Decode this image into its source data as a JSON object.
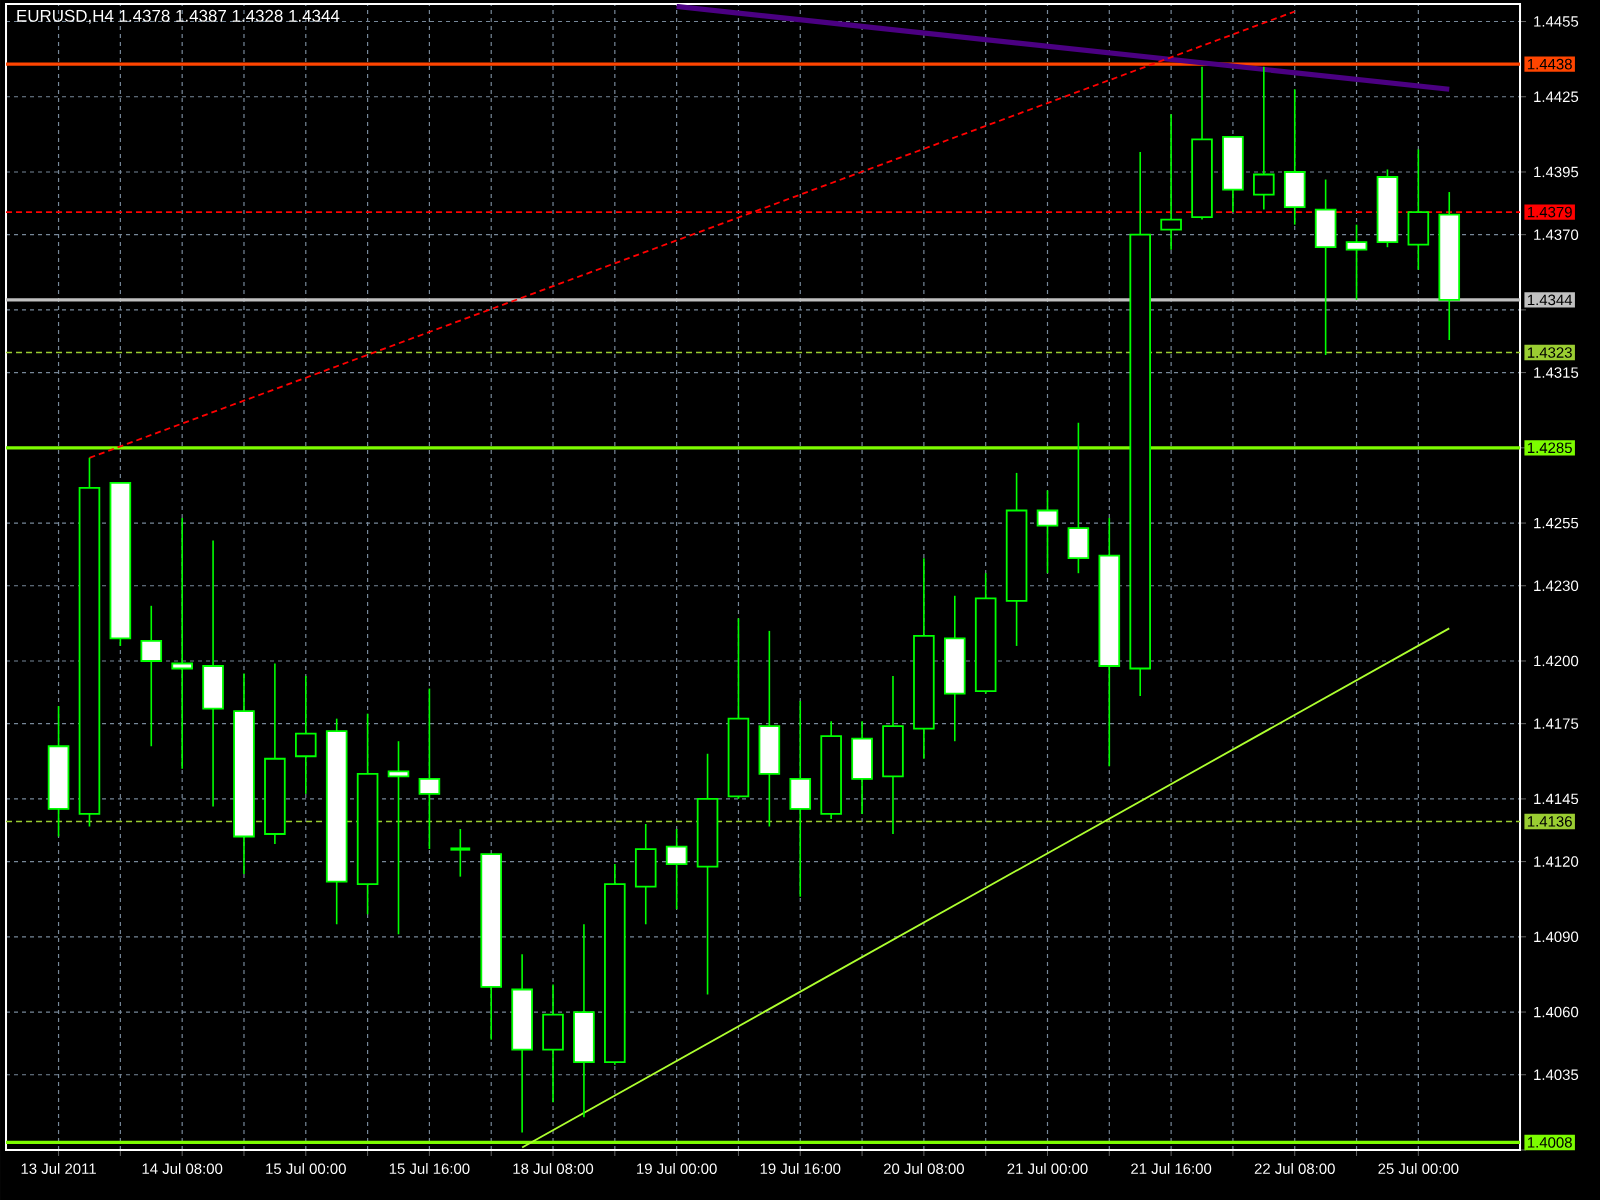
{
  "chart_data": {
    "type": "candlestick",
    "title": "EURUSD,H4  1.4378 1.4387 1.4328 1.4344",
    "color": "#00ff00",
    "categories": [
      "13 Jul 2011",
      null,
      null,
      null,
      "14 Jul 08:00",
      null,
      null,
      null,
      "15 Jul 00:00",
      null,
      null,
      null,
      "15 Jul 16:00",
      null,
      null,
      null,
      "18 Jul 08:00",
      null,
      null,
      null,
      "19 Jul 00:00",
      null,
      null,
      null,
      "19 Jul 16:00",
      null,
      null,
      null,
      "20 Jul 08:00",
      null,
      null,
      null,
      "21 Jul 00:00",
      null,
      null,
      null,
      "21 Jul 16:00",
      null,
      null,
      null,
      "22 Jul 08:00",
      null,
      null,
      null,
      "25 Jul 00:00",
      null
    ],
    "ohlc": [
      [
        1.4166,
        1.4182,
        1.413,
        1.4141
      ],
      [
        1.4139,
        1.4281,
        1.4134,
        1.4269
      ],
      [
        1.4271,
        1.4271,
        1.4206,
        1.4209
      ],
      [
        1.4208,
        1.4222,
        1.4166,
        1.42
      ],
      [
        1.4199,
        1.4257,
        1.4157,
        1.4197
      ],
      [
        1.4198,
        1.4248,
        1.4142,
        1.4181
      ],
      [
        1.418,
        1.4195,
        1.4115,
        1.413
      ],
      [
        1.4131,
        1.4199,
        1.4127,
        1.4161
      ],
      [
        1.4162,
        1.4194,
        1.4147,
        1.4171
      ],
      [
        1.4172,
        1.4177,
        1.4095,
        1.4112
      ],
      [
        1.4111,
        1.4179,
        1.4099,
        1.4155
      ],
      [
        1.4156,
        1.4168,
        1.4091,
        1.4154
      ],
      [
        1.4153,
        1.4189,
        1.4125,
        1.4147
      ],
      [
        1.4125,
        1.4133,
        1.4114,
        1.4125
      ],
      [
        1.4123,
        1.4123,
        1.4049,
        1.407
      ],
      [
        1.4069,
        1.4083,
        1.4012,
        1.4045
      ],
      [
        1.4045,
        1.4071,
        1.4024,
        1.4059
      ],
      [
        1.406,
        1.4095,
        1.4018,
        1.404
      ],
      [
        1.404,
        1.4119,
        1.4039,
        1.4111
      ],
      [
        1.411,
        1.4135,
        1.4095,
        1.4125
      ],
      [
        1.4126,
        1.4133,
        1.4101,
        1.4119
      ],
      [
        1.4118,
        1.4163,
        1.4067,
        1.4145
      ],
      [
        1.4146,
        1.4217,
        1.4145,
        1.4177
      ],
      [
        1.4174,
        1.4212,
        1.4134,
        1.4155
      ],
      [
        1.4153,
        1.4184,
        1.4106,
        1.4141
      ],
      [
        1.4139,
        1.4176,
        1.4137,
        1.417
      ],
      [
        1.4169,
        1.4176,
        1.4139,
        1.4153
      ],
      [
        1.4154,
        1.4194,
        1.4131,
        1.4174
      ],
      [
        1.4173,
        1.4241,
        1.4161,
        1.421
      ],
      [
        1.4209,
        1.4226,
        1.4168,
        1.4187
      ],
      [
        1.4188,
        1.4235,
        1.4187,
        1.4225
      ],
      [
        1.4224,
        1.4275,
        1.4206,
        1.426
      ],
      [
        1.426,
        1.4268,
        1.4235,
        1.4254
      ],
      [
        1.4253,
        1.4295,
        1.4235,
        1.4241
      ],
      [
        1.4242,
        1.4257,
        1.4158,
        1.4198
      ],
      [
        1.4197,
        1.4403,
        1.4186,
        1.437
      ],
      [
        1.4372,
        1.4418,
        1.4364,
        1.4376
      ],
      [
        1.4377,
        1.4437,
        1.4376,
        1.4408
      ],
      [
        1.4409,
        1.4409,
        1.4379,
        1.4388
      ],
      [
        1.4386,
        1.4437,
        1.438,
        1.4394
      ],
      [
        1.4395,
        1.4428,
        1.4374,
        1.4381
      ],
      [
        1.438,
        1.4392,
        1.4322,
        1.4365
      ],
      [
        1.4367,
        1.4374,
        1.4344,
        1.4364
      ],
      [
        1.4393,
        1.4396,
        1.4365,
        1.4367
      ],
      [
        1.4366,
        1.4404,
        1.4356,
        1.4379
      ],
      [
        1.4378,
        1.4387,
        1.4328,
        1.4344
      ]
    ],
    "series": [
      {
        "type": "line",
        "color": "#4b0082",
        "line_style": "solid",
        "values": [
          null,
          null,
          null,
          null,
          null,
          null,
          null,
          null,
          null,
          null,
          null,
          null,
          null,
          null,
          null,
          null,
          null,
          null,
          null,
          null,
          1.4461,
          null,
          null,
          null,
          null,
          null,
          null,
          null,
          null,
          null,
          null,
          null,
          null,
          null,
          null,
          null,
          null,
          null,
          null,
          null,
          null,
          null,
          null,
          null,
          null,
          1.4428
        ]
      },
      {
        "type": "line",
        "color": "#ff0000",
        "line_style": "dashed",
        "values": [
          null,
          1.4281,
          null,
          null,
          null,
          null,
          null,
          null,
          null,
          null,
          null,
          null,
          null,
          null,
          null,
          null,
          null,
          null,
          null,
          null,
          null,
          null,
          null,
          null,
          null,
          null,
          null,
          null,
          null,
          null,
          null,
          null,
          null,
          null,
          null,
          null,
          null,
          null,
          null,
          null,
          1.4459,
          null,
          null,
          null,
          null,
          null
        ]
      },
      {
        "type": "line",
        "color": "#adff2f",
        "line_style": "solid",
        "values": [
          null,
          null,
          null,
          null,
          null,
          null,
          null,
          null,
          null,
          null,
          null,
          null,
          null,
          null,
          null,
          1.4006,
          null,
          null,
          null,
          null,
          null,
          null,
          null,
          null,
          null,
          null,
          null,
          null,
          null,
          null,
          null,
          null,
          null,
          null,
          null,
          null,
          null,
          null,
          null,
          null,
          null,
          null,
          null,
          null,
          null,
          1.4213
        ]
      }
    ],
    "ylim": [
      1.4005,
      1.4462
    ],
    "yticks": [
      1.4455,
      1.4425,
      1.4395,
      {
        "value": 1.437,
        "label": "1.4370"
      },
      {
        "value": 1.434,
        "label": null
      },
      1.4315,
      {
        "value": 1.4285,
        "label": null
      },
      1.4255,
      {
        "value": 1.423,
        "label": "1.4230"
      },
      {
        "value": 1.42,
        "label": "1.4200"
      },
      1.4175,
      1.4145,
      {
        "value": 1.412,
        "label": "1.4120"
      },
      {
        "value": 1.409,
        "label": "1.4090"
      },
      {
        "value": 1.406,
        "label": "1.4060"
      },
      1.4035,
      {
        "value": 1.4005,
        "label": null
      }
    ],
    "ref_lines": [
      {
        "axis": "y",
        "value": 1.4438,
        "label": "1.4438",
        "color": "#ff4500",
        "line_style": "solid"
      },
      {
        "axis": "y",
        "value": 1.4379,
        "label": "1.4379",
        "color": "#ff0000",
        "line_style": "dashed"
      },
      {
        "axis": "y",
        "value": 1.4344,
        "label": "1.4344",
        "color": "#c0c0c0",
        "line_style": "solid"
      },
      {
        "axis": "y",
        "value": 1.4323,
        "label": "1.4323",
        "color": "#9acd32",
        "line_style": "dashed"
      },
      {
        "axis": "y",
        "value": 1.4285,
        "label": "1.4285",
        "color": "#7cfc00",
        "line_style": "solid"
      },
      {
        "axis": "y",
        "value": 1.4136,
        "label": "1.4136",
        "color": "#9acd32",
        "line_style": "dashed"
      },
      {
        "axis": "y",
        "value": 1.4008,
        "label": "1.4008",
        "color": "#7cfc00",
        "line_style": "solid"
      }
    ],
    "grid": true,
    "marker": "none"
  }
}
